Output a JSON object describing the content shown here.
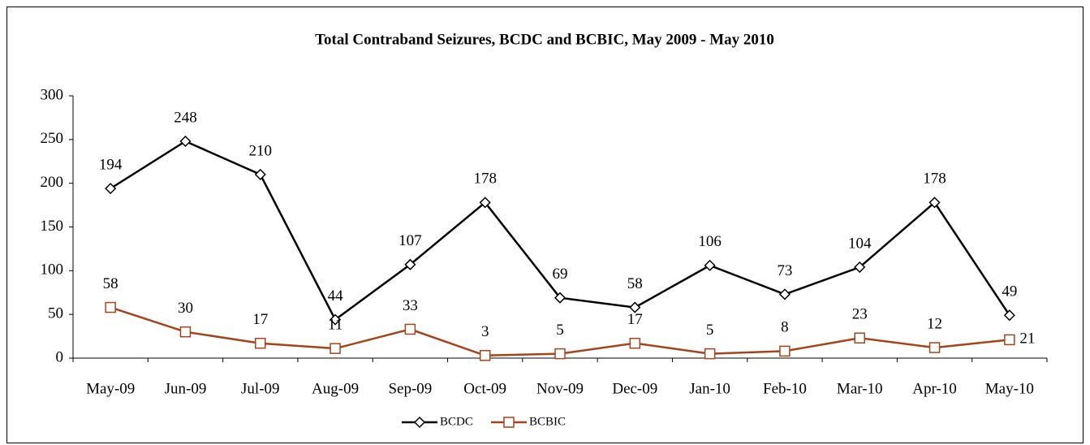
{
  "chart_data": {
    "type": "line",
    "title": "Total Contraband Seizures, BCDC and BCBIC, May 2009 - May 2010",
    "categories": [
      "May-09",
      "Jun-09",
      "Jul-09",
      "Aug-09",
      "Sep-09",
      "Oct-09",
      "Nov-09",
      "Dec-09",
      "Jan-10",
      "Feb-10",
      "Mar-10",
      "Apr-10",
      "May-10"
    ],
    "series": [
      {
        "name": "BCDC",
        "color": "#000000",
        "marker": "diamond",
        "values": [
          194,
          248,
          210,
          44,
          107,
          178,
          69,
          58,
          106,
          73,
          104,
          178,
          49
        ]
      },
      {
        "name": "BCBIC",
        "color": "#a5441b",
        "marker": "square",
        "values": [
          58,
          30,
          17,
          11,
          33,
          3,
          5,
          17,
          5,
          8,
          23,
          12,
          21
        ]
      }
    ],
    "ylim": [
      0,
      300
    ],
    "yticks": [
      0,
      50,
      100,
      150,
      200,
      250,
      300
    ],
    "grid": false,
    "legend": "bottom"
  }
}
